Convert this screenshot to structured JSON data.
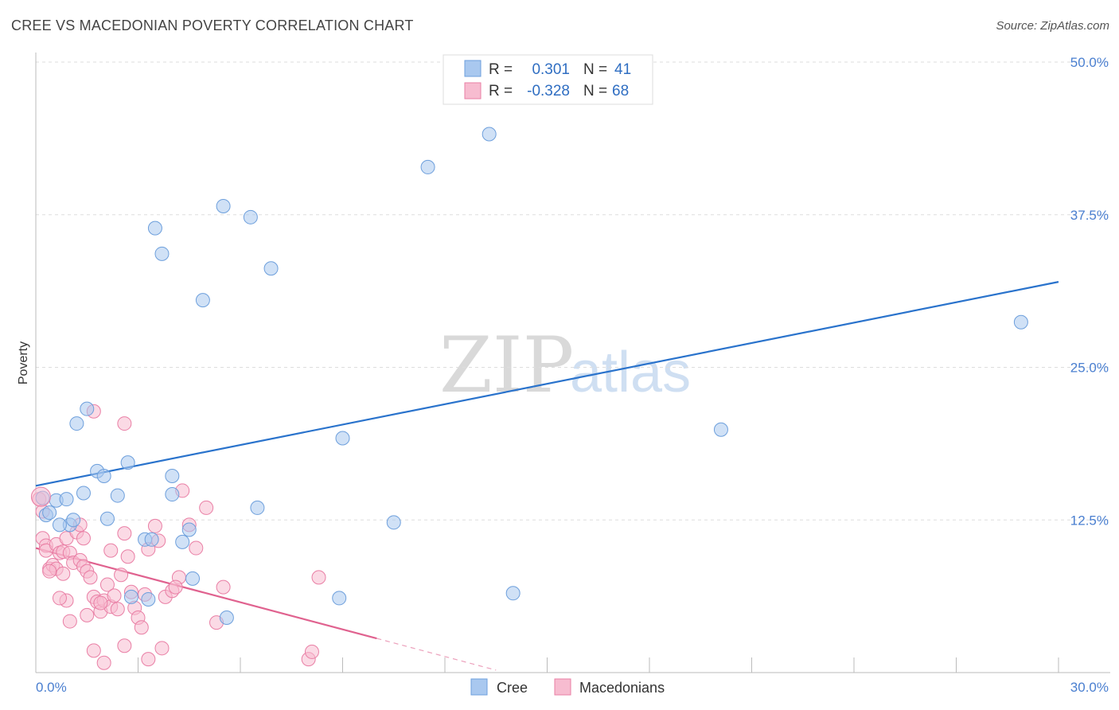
{
  "title": "CREE VS MACEDONIAN POVERTY CORRELATION CHART",
  "source": "Source: ZipAtlas.com",
  "watermark": {
    "zip": "ZIP",
    "atlas": "atlas"
  },
  "colors": {
    "cree_fill": "#a9c8ef",
    "cree_stroke": "#6d9fdc",
    "cree_line": "#2a73cc",
    "mac_fill": "#f7bcd0",
    "mac_stroke": "#e97fa5",
    "mac_line": "#e0628f",
    "tick": "#4a7fd0",
    "grid": "#dddddd"
  },
  "legend": {
    "rows": [
      {
        "r_label": "R =",
        "r_value": "0.301",
        "n_label": "N =",
        "n_value": "41"
      },
      {
        "r_label": "R =",
        "r_value": "-0.328",
        "n_label": "N =",
        "n_value": "68"
      }
    ]
  },
  "bottom_legend": [
    "Cree",
    "Macedonians"
  ],
  "chart_data": {
    "type": "scatter",
    "title": "CREE VS MACEDONIAN POVERTY CORRELATION CHART",
    "xlabel": "",
    "ylabel": "Poverty",
    "xlim": [
      0,
      30
    ],
    "ylim": [
      0,
      50
    ],
    "x_tick_labels": [
      "0.0%",
      "30.0%"
    ],
    "y_ticks": [
      12.5,
      25.0,
      37.5,
      50.0
    ],
    "y_tick_labels": [
      "12.5%",
      "25.0%",
      "37.5%",
      "50.0%"
    ],
    "legend_position": "bottom-center",
    "series": [
      {
        "name": "Cree",
        "r": 0.301,
        "n": 41,
        "trend": {
          "x0": 0,
          "y0": 15.3,
          "x1": 30,
          "y1": 32.0
        },
        "points": [
          [
            0.2,
            14.3
          ],
          [
            0.3,
            12.9
          ],
          [
            0.4,
            13.1
          ],
          [
            0.6,
            14.1
          ],
          [
            0.9,
            14.2
          ],
          [
            1.0,
            12.1
          ],
          [
            0.7,
            12.1
          ],
          [
            1.1,
            12.5
          ],
          [
            1.4,
            14.7
          ],
          [
            1.5,
            21.6
          ],
          [
            1.2,
            20.4
          ],
          [
            1.8,
            16.5
          ],
          [
            2.0,
            16.1
          ],
          [
            2.1,
            12.6
          ],
          [
            2.4,
            14.5
          ],
          [
            2.7,
            17.2
          ],
          [
            2.8,
            6.2
          ],
          [
            3.3,
            6.0
          ],
          [
            3.5,
            36.4
          ],
          [
            3.7,
            34.3
          ],
          [
            3.2,
            10.9
          ],
          [
            3.4,
            10.9
          ],
          [
            4.0,
            16.1
          ],
          [
            4.0,
            14.6
          ],
          [
            4.3,
            10.7
          ],
          [
            4.5,
            11.7
          ],
          [
            4.6,
            7.7
          ],
          [
            4.9,
            30.5
          ],
          [
            5.5,
            38.2
          ],
          [
            5.6,
            4.5
          ],
          [
            6.3,
            37.3
          ],
          [
            6.5,
            13.5
          ],
          [
            6.9,
            33.1
          ],
          [
            9.0,
            19.2
          ],
          [
            8.9,
            6.1
          ],
          [
            10.5,
            12.3
          ],
          [
            11.5,
            41.4
          ],
          [
            13.3,
            44.1
          ],
          [
            14.0,
            6.5
          ],
          [
            20.1,
            19.9
          ],
          [
            28.9,
            28.7
          ]
        ]
      },
      {
        "name": "Macedonians",
        "r": -0.328,
        "n": 68,
        "trend": {
          "x0": 0,
          "y0": 10.2,
          "x1": 10.0,
          "y1": 2.8
        },
        "trend_dashed": {
          "x0": 10.0,
          "y0": 2.8,
          "x1": 13.5,
          "y1": 0.2
        },
        "points": [
          [
            0.1,
            14.2
          ],
          [
            0.2,
            13.2
          ],
          [
            0.2,
            11.0
          ],
          [
            0.3,
            10.4
          ],
          [
            0.3,
            10.0
          ],
          [
            0.4,
            8.5
          ],
          [
            0.5,
            8.8
          ],
          [
            0.6,
            8.5
          ],
          [
            0.6,
            10.5
          ],
          [
            0.7,
            9.8
          ],
          [
            0.8,
            9.9
          ],
          [
            0.8,
            8.1
          ],
          [
            0.9,
            11.0
          ],
          [
            1.0,
            9.8
          ],
          [
            1.1,
            9.0
          ],
          [
            1.2,
            11.5
          ],
          [
            1.3,
            12.1
          ],
          [
            1.3,
            9.2
          ],
          [
            1.4,
            8.7
          ],
          [
            1.5,
            8.3
          ],
          [
            1.6,
            7.8
          ],
          [
            1.7,
            6.2
          ],
          [
            1.8,
            5.8
          ],
          [
            1.9,
            5.0
          ],
          [
            2.0,
            5.9
          ],
          [
            2.1,
            7.2
          ],
          [
            2.2,
            5.4
          ],
          [
            2.3,
            6.3
          ],
          [
            2.4,
            5.2
          ],
          [
            2.5,
            8.0
          ],
          [
            2.6,
            11.4
          ],
          [
            2.7,
            9.5
          ],
          [
            2.8,
            6.6
          ],
          [
            2.9,
            5.3
          ],
          [
            3.0,
            4.5
          ],
          [
            3.1,
            3.7
          ],
          [
            3.2,
            6.4
          ],
          [
            3.3,
            10.1
          ],
          [
            3.5,
            12.0
          ],
          [
            3.6,
            10.8
          ],
          [
            3.8,
            6.2
          ],
          [
            4.0,
            6.7
          ],
          [
            4.2,
            7.8
          ],
          [
            4.3,
            14.9
          ],
          [
            4.5,
            12.1
          ],
          [
            4.7,
            10.2
          ],
          [
            5.0,
            13.5
          ],
          [
            5.3,
            4.1
          ],
          [
            5.5,
            7.0
          ],
          [
            1.7,
            21.4
          ],
          [
            2.6,
            20.4
          ],
          [
            1.0,
            4.2
          ],
          [
            1.5,
            4.7
          ],
          [
            1.7,
            1.8
          ],
          [
            2.0,
            0.8
          ],
          [
            2.6,
            2.2
          ],
          [
            3.3,
            1.1
          ],
          [
            3.7,
            2.0
          ],
          [
            8.0,
            1.1
          ],
          [
            8.1,
            1.7
          ],
          [
            8.3,
            7.8
          ],
          [
            4.1,
            7.0
          ],
          [
            1.9,
            5.7
          ],
          [
            0.4,
            8.3
          ],
          [
            1.4,
            11.0
          ],
          [
            0.9,
            5.9
          ],
          [
            0.7,
            6.1
          ],
          [
            2.2,
            10.0
          ]
        ]
      }
    ]
  }
}
